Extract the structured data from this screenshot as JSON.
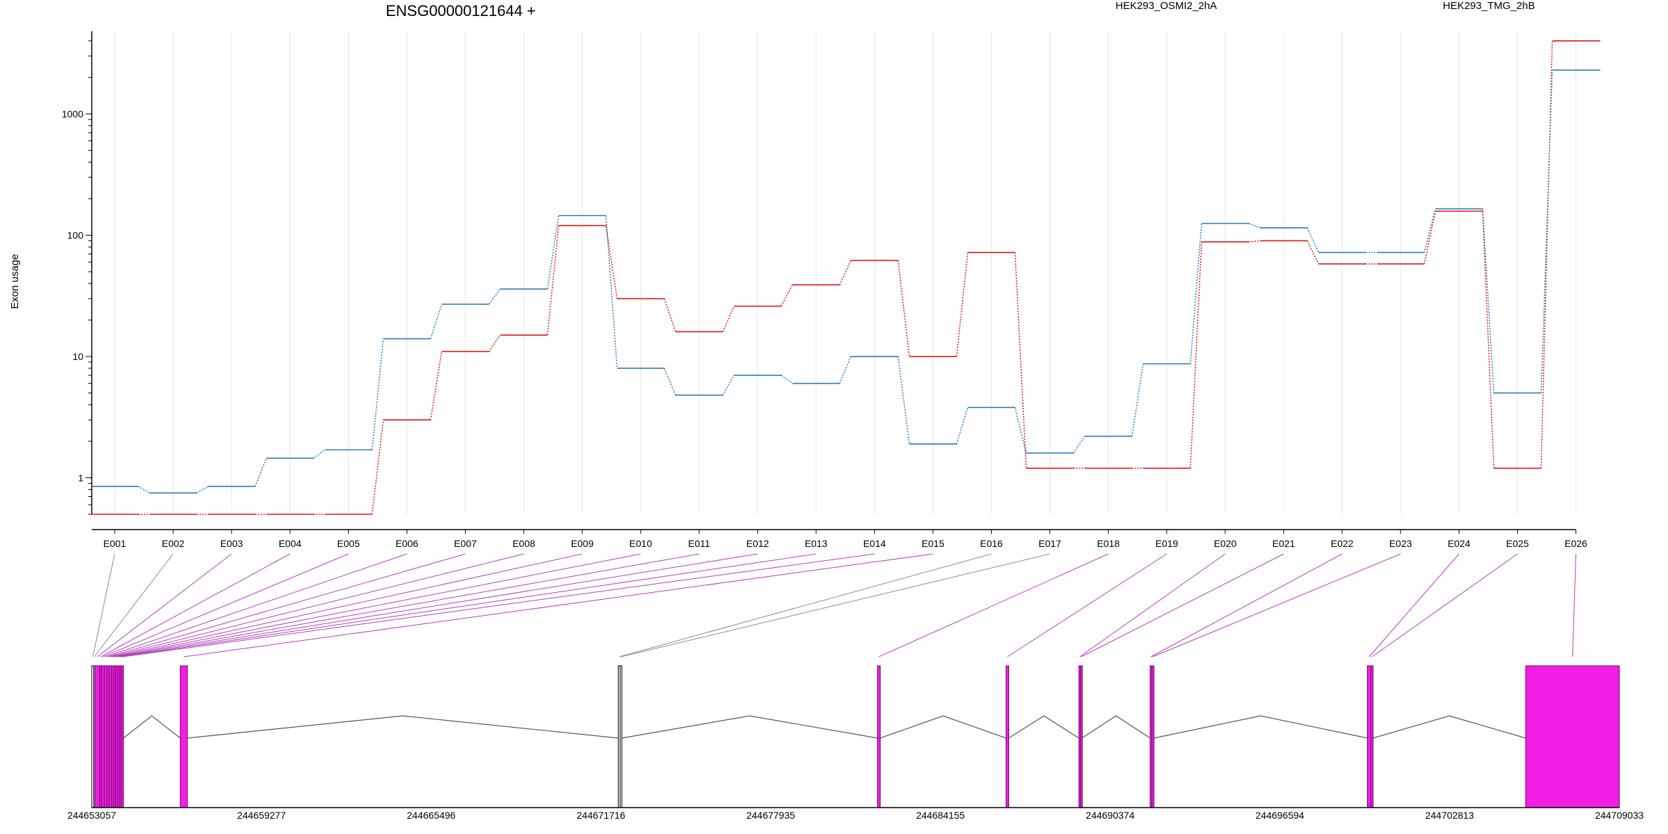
{
  "chart_data": {
    "type": "line",
    "title": "ENSG00000121644 +",
    "ylabel": "Exon usage",
    "xlabel": "",
    "yscale": "log",
    "ylim": [
      0.5,
      4800
    ],
    "grid": "vertical lines at exon positions",
    "legend_placement": "top",
    "y_ticks": [
      {
        "value": 1,
        "label": "1"
      },
      {
        "value": 10,
        "label": "10"
      },
      {
        "value": 100,
        "label": "100"
      },
      {
        "value": 1000,
        "label": "1000"
      }
    ],
    "categories": [
      "E001",
      "E002",
      "E003",
      "E004",
      "E005",
      "E006",
      "E007",
      "E008",
      "E009",
      "E010",
      "E011",
      "E012",
      "E013",
      "E014",
      "E015",
      "E016",
      "E017",
      "E018",
      "E019",
      "E020",
      "E021",
      "E022",
      "E023",
      "E024",
      "E025",
      "E026"
    ],
    "series": [
      {
        "name": "HEK293_OSMI2_2hA",
        "color": "#d7191c",
        "values": [
          0.5,
          0.5,
          0.5,
          0.5,
          0.5,
          3,
          11,
          15,
          120,
          30,
          16,
          26,
          39,
          62,
          10,
          72,
          1.2,
          1.2,
          1.2,
          88,
          90,
          58,
          58,
          158,
          1.2,
          4000
        ]
      },
      {
        "name": "HEK293_TMG_2hB",
        "color": "#2c7bb6",
        "values": [
          0.85,
          0.75,
          0.85,
          1.45,
          1.7,
          14,
          27,
          36,
          145,
          8,
          4.8,
          7,
          6,
          10,
          1.9,
          3.8,
          1.6,
          2.2,
          8.7,
          125,
          115,
          72,
          72,
          165,
          5,
          2300
        ]
      }
    ],
    "gene_model": {
      "coordinate_labels": [
        "244653057",
        "244659277",
        "244665496",
        "244671716",
        "244677935",
        "244684155",
        "244690374",
        "244696594",
        "244702813",
        "244709033"
      ],
      "coordinate_range": [
        244653057,
        244709033
      ],
      "exons": [
        {
          "id": "E001",
          "start": 244653057,
          "end": 244653130,
          "colored": false
        },
        {
          "id": "E002",
          "start": 244653130,
          "end": 244653170,
          "colored": false
        },
        {
          "id": "E003",
          "start": 244653170,
          "end": 244653350,
          "colored": true
        },
        {
          "id": "E004",
          "start": 244653350,
          "end": 244653420,
          "colored": true
        },
        {
          "id": "E005",
          "start": 244653420,
          "end": 244653520,
          "colored": true
        },
        {
          "id": "E006",
          "start": 244653520,
          "end": 244653620,
          "colored": true
        },
        {
          "id": "E007",
          "start": 244653620,
          "end": 244653700,
          "colored": true
        },
        {
          "id": "E008",
          "start": 244653700,
          "end": 244653790,
          "colored": true
        },
        {
          "id": "E009",
          "start": 244653790,
          "end": 244653870,
          "colored": true
        },
        {
          "id": "E010",
          "start": 244653870,
          "end": 244653940,
          "colored": true
        },
        {
          "id": "E011",
          "start": 244653940,
          "end": 244654020,
          "colored": true
        },
        {
          "id": "E012",
          "start": 244654020,
          "end": 244654090,
          "colored": true
        },
        {
          "id": "E013",
          "start": 244654090,
          "end": 244654150,
          "colored": true
        },
        {
          "id": "E014",
          "start": 244654150,
          "end": 244654220,
          "colored": true
        },
        {
          "id": "E015",
          "start": 244656300,
          "end": 244656560,
          "colored": true
        },
        {
          "id": "E016",
          "start": 244672350,
          "end": 244672420,
          "colored": false
        },
        {
          "id": "E017",
          "start": 244672420,
          "end": 244672480,
          "colored": false
        },
        {
          "id": "E018",
          "start": 244681850,
          "end": 244681950,
          "colored": true
        },
        {
          "id": "E019",
          "start": 244686560,
          "end": 244686660,
          "colored": true
        },
        {
          "id": "E020",
          "start": 244689230,
          "end": 244689290,
          "colored": true
        },
        {
          "id": "E021",
          "start": 244689290,
          "end": 244689340,
          "colored": true
        },
        {
          "id": "E022",
          "start": 244691840,
          "end": 244691900,
          "colored": true
        },
        {
          "id": "E023",
          "start": 244691900,
          "end": 244691980,
          "colored": true
        },
        {
          "id": "E024",
          "start": 244699800,
          "end": 244699930,
          "colored": true
        },
        {
          "id": "E025",
          "start": 244699930,
          "end": 244700010,
          "colored": true
        },
        {
          "id": "E026",
          "start": 244705600,
          "end": 244709033,
          "colored": true
        }
      ]
    },
    "colors": {
      "exon_fill": "#f21ee6",
      "exon_link_colored": "#b040b8",
      "exon_link_plain": "#8a8a8a",
      "intron": "#555555",
      "grid": "#e4e4ec"
    }
  }
}
